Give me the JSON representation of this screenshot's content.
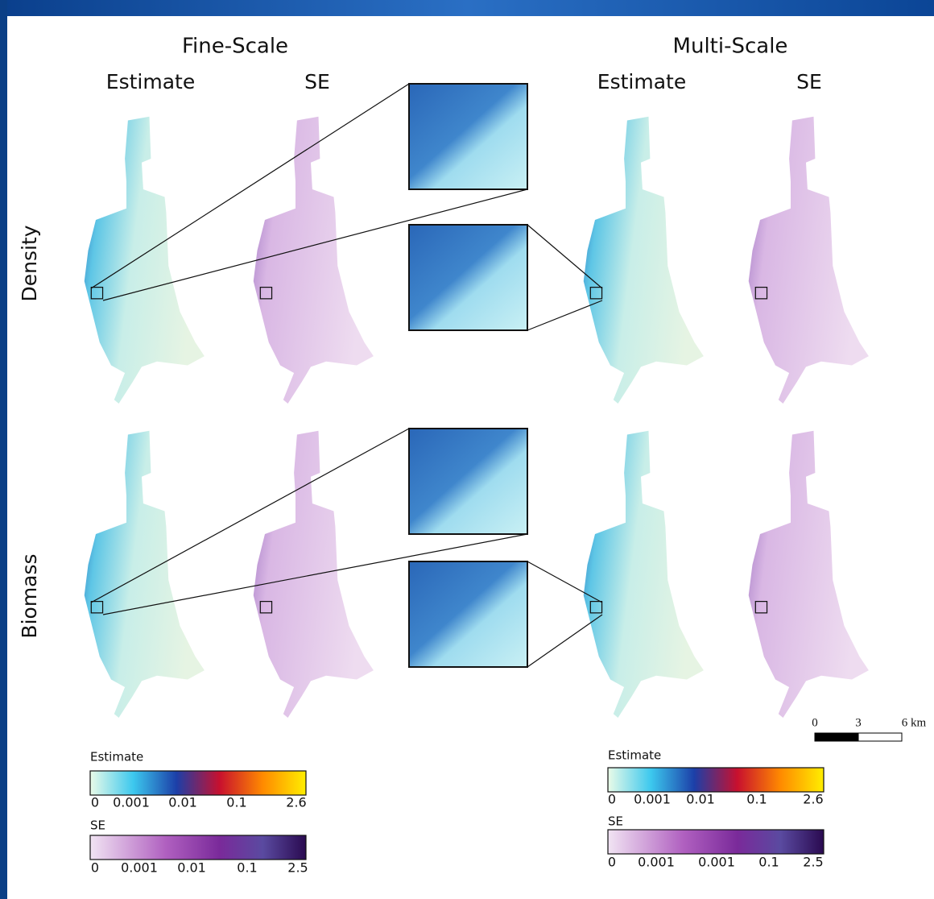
{
  "header": {
    "fine_scale": "Fine-Scale",
    "multi_scale": "Multi-Scale"
  },
  "columns": [
    "Estimate",
    "SE",
    "Estimate",
    "SE"
  ],
  "rows": [
    "Density",
    "Biomass"
  ],
  "legends": [
    {
      "title": "Estimate",
      "ticks": [
        "0",
        "0.001",
        "0.01",
        "0.1",
        "2.6"
      ]
    },
    {
      "title": "SE",
      "ticks": [
        "0",
        "0.001",
        "0.01",
        "0.1",
        "2.5"
      ]
    },
    {
      "title": "Estimate",
      "ticks": [
        "0",
        "0.001",
        "0.01",
        "0.1",
        "2.6"
      ]
    },
    {
      "title": "SE",
      "ticks": [
        "0",
        "0.001",
        "0.001",
        "0.1",
        "2.5"
      ]
    }
  ],
  "scale_bar": {
    "ticks": [
      "0",
      "3",
      "6 km"
    ]
  }
}
